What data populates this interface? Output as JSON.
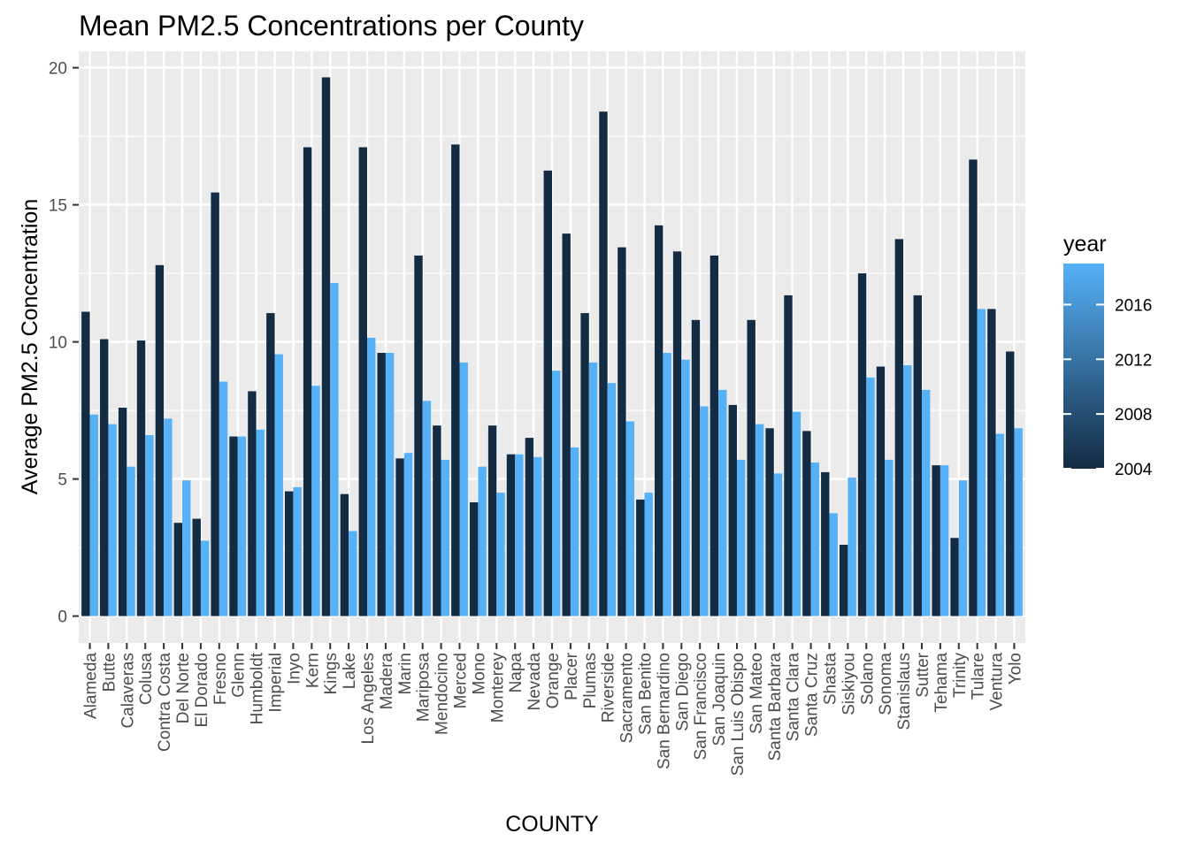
{
  "chart_data": {
    "type": "bar",
    "title": "Mean PM2.5 Concentrations per County",
    "xlabel": "COUNTY",
    "ylabel": "Average PM2.5 Concentration",
    "ylim": [
      -0.98,
      20.6
    ],
    "yticks": [
      0,
      5,
      10,
      15,
      20
    ],
    "ytick_labels": [
      "0",
      "5",
      "10",
      "15",
      "20"
    ],
    "grid": true,
    "bar_position": "dodge",
    "colors": {
      "panel": "#ebebeb",
      "grid": "#ffffff",
      "low": "#132b43",
      "high": "#56b1f7"
    },
    "categories": [
      "Alameda",
      "Butte",
      "Calaveras",
      "Colusa",
      "Contra Costa",
      "Del Norte",
      "El Dorado",
      "Fresno",
      "Glenn",
      "Humboldt",
      "Imperial",
      "Inyo",
      "Kern",
      "Kings",
      "Lake",
      "Los Angeles",
      "Madera",
      "Marin",
      "Mariposa",
      "Mendocino",
      "Merced",
      "Mono",
      "Monterey",
      "Napa",
      "Nevada",
      "Orange",
      "Placer",
      "Plumas",
      "Riverside",
      "Sacramento",
      "San Benito",
      "San Bernardino",
      "San Diego",
      "San Francisco",
      "San Joaquin",
      "San Luis Obispo",
      "San Mateo",
      "Santa Barbara",
      "Santa Clara",
      "Santa Cruz",
      "Shasta",
      "Siskiyou",
      "Solano",
      "Sonoma",
      "Stanislaus",
      "Sutter",
      "Tehama",
      "Trinity",
      "Tulare",
      "Ventura",
      "Yolo"
    ],
    "series": [
      {
        "values": [
          11.1,
          10.1,
          7.6,
          10.05,
          12.8,
          3.4,
          3.55,
          15.45,
          6.55,
          8.2,
          11.05,
          4.55,
          17.1,
          19.65,
          4.45,
          17.1,
          9.6,
          5.75,
          13.15,
          6.95,
          17.2,
          4.15,
          6.95,
          5.9,
          6.5,
          16.25,
          13.95,
          11.05,
          18.4,
          13.45,
          4.25,
          14.25,
          13.3,
          10.8,
          13.15,
          7.7,
          10.8,
          6.85,
          11.7,
          6.75,
          5.25,
          2.6,
          12.5,
          9.1,
          13.75,
          11.7,
          5.5,
          2.85,
          16.65,
          11.2,
          9.65
        ]
      },
      {
        "values": [
          7.35,
          7.0,
          5.45,
          6.6,
          7.2,
          4.95,
          2.75,
          8.55,
          6.55,
          6.8,
          9.55,
          4.7,
          8.4,
          12.15,
          3.1,
          10.15,
          9.6,
          5.95,
          7.85,
          5.7,
          9.25,
          5.45,
          4.5,
          5.9,
          5.8,
          8.95,
          6.15,
          9.25,
          8.5,
          7.1,
          4.5,
          9.6,
          9.35,
          7.65,
          8.25,
          5.7,
          7.0,
          5.2,
          7.45,
          5.6,
          3.75,
          5.05,
          8.7,
          5.7,
          9.15,
          8.25,
          5.5,
          4.95,
          11.2,
          6.65,
          6.85
        ]
      }
    ],
    "legend": {
      "title": "year",
      "type": "colorbar",
      "position": "right",
      "range": [
        2004,
        2019
      ],
      "breaks": [
        2004,
        2008,
        2012,
        2016
      ],
      "labels": [
        "2004",
        "2008",
        "2012",
        "2016"
      ]
    }
  }
}
